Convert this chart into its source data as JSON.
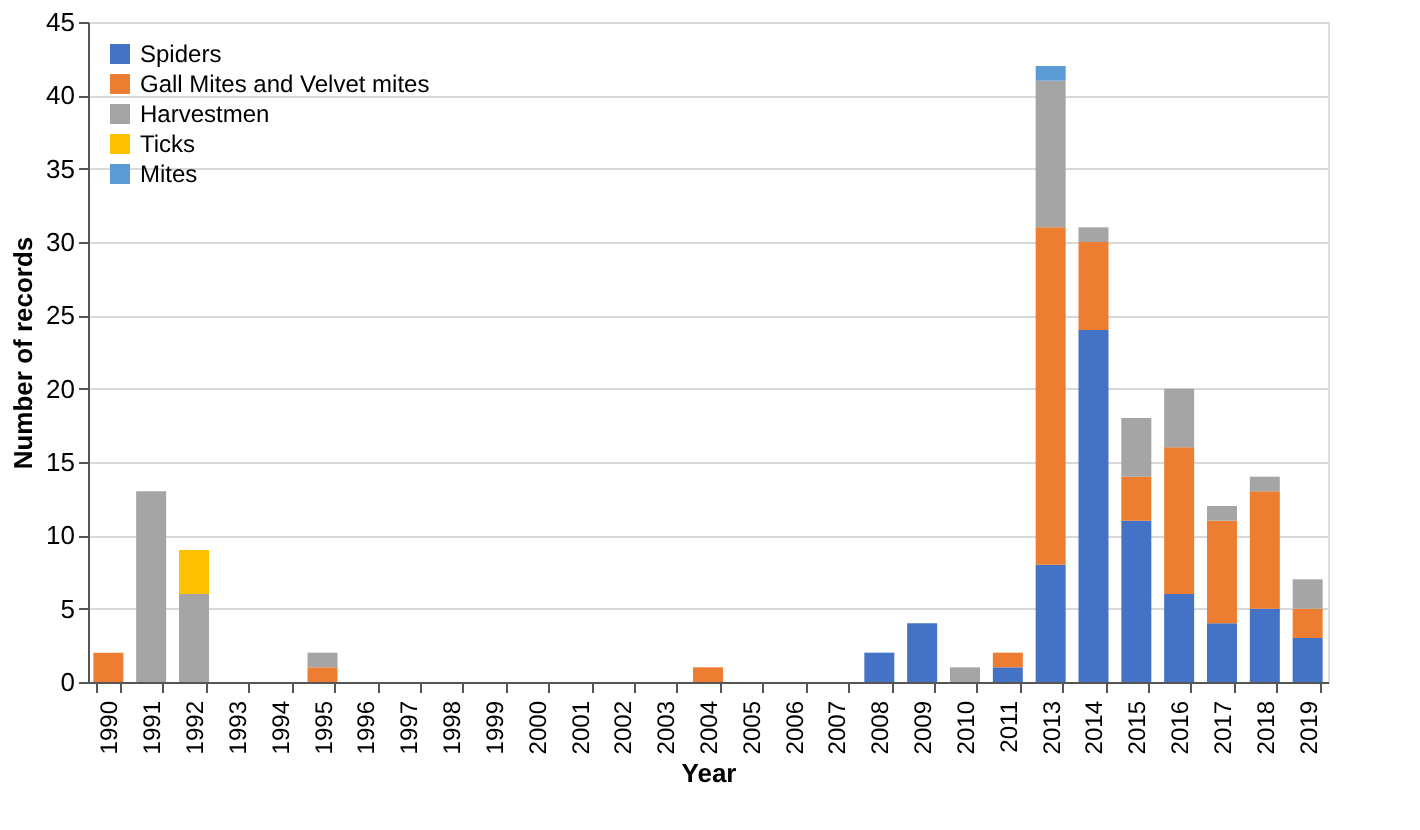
{
  "chart_data": {
    "type": "bar",
    "stacked": true,
    "xlabel": "Year",
    "ylabel": "Number of records",
    "categories": [
      "1990",
      "1991",
      "1992",
      "1993",
      "1994",
      "1995",
      "1996",
      "1997",
      "1998",
      "1999",
      "2000",
      "2001",
      "2002",
      "2003",
      "2004",
      "2005",
      "2006",
      "2007",
      "2008",
      "2009",
      "2010",
      "2011",
      "2013",
      "2014",
      "2015",
      "2016",
      "2017",
      "2018",
      "2019"
    ],
    "series": [
      {
        "name": "Spiders",
        "color": "#4472c4",
        "values": [
          0,
          0,
          0,
          0,
          0,
          0,
          0,
          0,
          0,
          0,
          0,
          0,
          0,
          0,
          0,
          0,
          0,
          0,
          2,
          4,
          0,
          1,
          8,
          24,
          11,
          6,
          4,
          5,
          3
        ]
      },
      {
        "name": "Gall Mites and Velvet mites",
        "color": "#ed7d31",
        "values": [
          2,
          0,
          0,
          0,
          0,
          1,
          0,
          0,
          0,
          0,
          0,
          0,
          0,
          0,
          1,
          0,
          0,
          0,
          0,
          0,
          0,
          1,
          23,
          6,
          3,
          10,
          7,
          8,
          2
        ]
      },
      {
        "name": "Harvestmen",
        "color": "#a5a5a5",
        "values": [
          0,
          13,
          6,
          0,
          0,
          1,
          0,
          0,
          0,
          0,
          0,
          0,
          0,
          0,
          0,
          0,
          0,
          0,
          0,
          0,
          1,
          0,
          10,
          1,
          4,
          4,
          1,
          1,
          2
        ]
      },
      {
        "name": "Ticks",
        "color": "#ffc000",
        "values": [
          0,
          0,
          3,
          0,
          0,
          0,
          0,
          0,
          0,
          0,
          0,
          0,
          0,
          0,
          0,
          0,
          0,
          0,
          0,
          0,
          0,
          0,
          0,
          0,
          0,
          0,
          0,
          0,
          0
        ]
      },
      {
        "name": "Mites",
        "color": "#5b9bd5",
        "values": [
          0,
          0,
          0,
          0,
          0,
          0,
          0,
          0,
          0,
          0,
          0,
          0,
          0,
          0,
          0,
          0,
          0,
          0,
          0,
          0,
          0,
          0,
          1,
          0,
          0,
          0,
          0,
          0,
          0
        ]
      }
    ],
    "ylim": [
      0,
      45
    ],
    "yticks": [
      0,
      5,
      10,
      15,
      20,
      25,
      30,
      35,
      40,
      45
    ],
    "grid": "y",
    "legend": "top left"
  }
}
